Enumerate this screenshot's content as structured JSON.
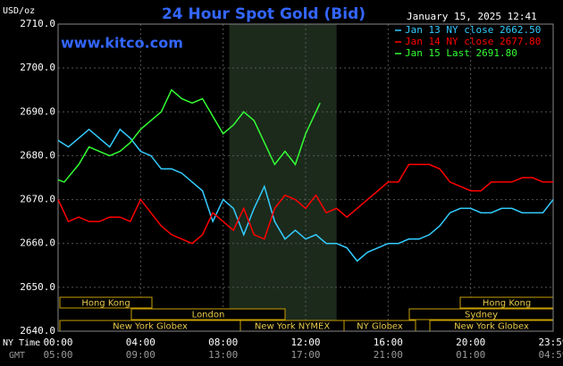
{
  "chart_data": {
    "type": "line",
    "title": "24 Hour Spot Gold (Bid)",
    "timestamp": "January 15, 2025 12:41",
    "watermark": "www.kitco.com",
    "y_label": "USD/oz",
    "x_label": "NY Time",
    "x2_label": "GMT",
    "ylim": [
      2640,
      2710
    ],
    "yticks": [
      {
        "value": 2640,
        "label": "2640.0"
      },
      {
        "value": 2650,
        "label": "2650.0"
      },
      {
        "value": 2660,
        "label": "2660.0"
      },
      {
        "value": 2670,
        "label": "2670.0"
      },
      {
        "value": 2680,
        "label": "2680.0"
      },
      {
        "value": 2690,
        "label": "2690.0"
      },
      {
        "value": 2700,
        "label": "2700.0"
      },
      {
        "value": 2710,
        "label": "2710.0"
      }
    ],
    "xlim": [
      0,
      24
    ],
    "xticks": [
      {
        "value": 0,
        "label": "00:00"
      },
      {
        "value": 4,
        "label": "04:00"
      },
      {
        "value": 8,
        "label": "08:00"
      },
      {
        "value": 12,
        "label": "12:00"
      },
      {
        "value": 16,
        "label": "16:00"
      },
      {
        "value": 20,
        "label": "20:00"
      },
      {
        "value": 24,
        "label": "23:59"
      }
    ],
    "x2tick_labels": [
      "05:00",
      "09:00",
      "13:00",
      "17:00",
      "21:00",
      "01:00",
      "04:59"
    ],
    "highlight": [
      8.3,
      13.5
    ],
    "grid": true,
    "markets": [
      "Hong Kong",
      "Hong Kong",
      "London",
      "Sydney",
      "New York Globex",
      "New York NYMEX",
      "NY Globex",
      "New York Globex"
    ],
    "series": [
      {
        "name": "Jan 13 NY close 2662.50",
        "color": "#33ccff",
        "x": [
          0,
          0.5,
          1,
          1.5,
          2,
          2.5,
          3,
          3.5,
          4,
          4.5,
          5,
          5.5,
          6,
          6.5,
          7,
          7.5,
          8,
          8.5,
          9,
          9.5,
          10,
          10.5,
          11,
          11.5,
          12,
          12.5,
          13,
          13.5,
          14,
          14.5,
          15,
          15.5,
          16,
          16.5,
          17,
          17.5,
          18,
          18.5,
          19,
          19.5,
          20,
          20.5,
          21,
          21.5,
          22,
          22.5,
          23,
          23.5,
          24
        ],
        "values": [
          2683.5,
          2682,
          2684,
          2686,
          2684,
          2682,
          2686,
          2684,
          2681,
          2680,
          2677,
          2677,
          2676,
          2674,
          2672,
          2665,
          2670,
          2668,
          2662,
          2668,
          2673,
          2665,
          2661,
          2663,
          2661,
          2662,
          2660,
          2660,
          2659,
          2656,
          2658,
          2659,
          2660,
          2660,
          2661,
          2661,
          2662,
          2664,
          2667,
          2668,
          2668,
          2667,
          2667,
          2668,
          2668,
          2667,
          2667,
          2667,
          2670
        ]
      },
      {
        "name": "Jan 14 NY close 2677.80",
        "color": "#ff0000",
        "x": [
          0,
          0.5,
          1,
          1.5,
          2,
          2.5,
          3,
          3.5,
          4,
          4.5,
          5,
          5.5,
          6,
          6.5,
          7,
          7.5,
          8,
          8.5,
          9,
          9.5,
          10,
          10.5,
          11,
          11.5,
          12,
          12.5,
          13,
          13.5,
          14,
          14.5,
          15,
          15.5,
          16,
          16.5,
          17,
          17.5,
          18,
          18.5,
          19,
          19.5,
          20,
          20.5,
          21,
          21.5,
          22,
          22.5,
          23,
          23.5,
          24
        ],
        "values": [
          2670,
          2665,
          2666,
          2665,
          2665,
          2666,
          2666,
          2665,
          2670,
          2667,
          2664,
          2662,
          2661,
          2660,
          2662,
          2667,
          2665,
          2663,
          2668,
          2662,
          2661,
          2668,
          2671,
          2670,
          2668,
          2671,
          2667,
          2668,
          2666,
          2668,
          2670,
          2672,
          2674,
          2674,
          2678,
          2678,
          2678,
          2677,
          2674,
          2673,
          2672,
          2672,
          2674,
          2674,
          2674,
          2675,
          2675,
          2674,
          2674
        ]
      },
      {
        "name": "Jan 15 Last 2691.80",
        "color": "#33ff33",
        "x": [
          0,
          0.3,
          1,
          1.5,
          2,
          2.5,
          3,
          3.5,
          4,
          4.5,
          5,
          5.5,
          6,
          6.5,
          7,
          7.5,
          8,
          8.5,
          9,
          9.5,
          10,
          10.5,
          11,
          11.5,
          12,
          12.5,
          12.7
        ],
        "values": [
          2674.5,
          2674,
          2678,
          2682,
          2681,
          2680,
          2681,
          2683,
          2686,
          2688,
          2690,
          2695,
          2693,
          2692,
          2693,
          2689,
          2685,
          2687,
          2690,
          2688,
          2683,
          2678,
          2681,
          2678,
          2685,
          2690,
          2692
        ]
      }
    ]
  }
}
